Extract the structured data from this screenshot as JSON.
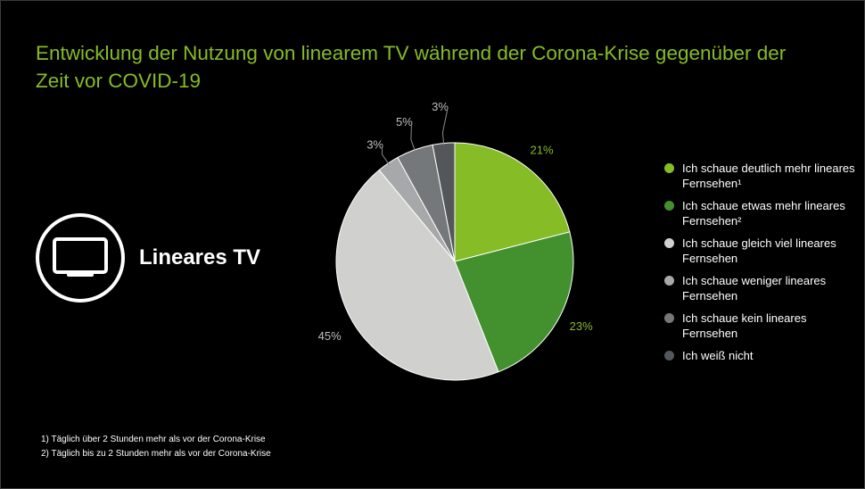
{
  "slide": {
    "title": "Entwicklung der Nutzung von linearem TV während der Corona-Krise gegenüber der Zeit vor COVID-19",
    "category_label": "Lineares TV",
    "category_icon": "tv-icon",
    "footnotes": [
      "1) Täglich über 2 Stunden mehr als vor der Corona-Krise",
      "2) Täglich bis zu 2 Stunden mehr als vor der Corona-Krise"
    ]
  },
  "colors": {
    "background": "#000000",
    "title": "#86bc25",
    "label_muted": "#bfbfbf"
  },
  "chart_data": {
    "type": "pie",
    "title": "",
    "slices": [
      {
        "label": "Ich schaue deutlich mehr lineares Fernsehen¹",
        "value": 21,
        "display": "21%",
        "color": "#86bc25",
        "label_color": "#86bc25"
      },
      {
        "label": "Ich schaue etwas mehr lineares Fernsehen²",
        "value": 23,
        "display": "23%",
        "color": "#43902f",
        "label_color": "#86bc25"
      },
      {
        "label": "Ich schaue gleich viel lineares Fernsehen",
        "value": 45,
        "display": "45%",
        "color": "#d0d0ce",
        "label_color": "#bfbfbf"
      },
      {
        "label": "Ich schaue weniger lineares Fernsehen",
        "value": 3,
        "display": "3%",
        "color": "#a7a8aa",
        "label_color": "#bfbfbf"
      },
      {
        "label": "Ich schaue kein lineares Fernsehen",
        "value": 5,
        "display": "5%",
        "color": "#75787b",
        "label_color": "#bfbfbf"
      },
      {
        "label": "Ich weiß nicht",
        "value": 3,
        "display": "3%",
        "color": "#53565a",
        "label_color": "#bfbfbf"
      }
    ],
    "start_angle_deg": 0,
    "direction": "clockwise",
    "legend_position": "right"
  }
}
